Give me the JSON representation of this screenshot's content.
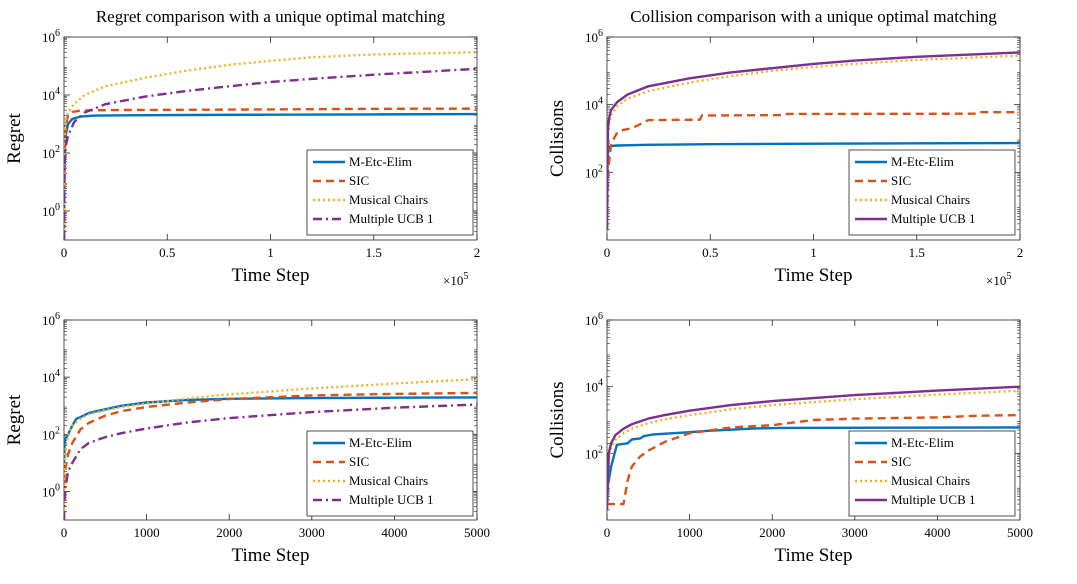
{
  "chart_data": [
    {
      "type": "line",
      "title": "Regret comparison with a unique optimal matching",
      "xlabel": "Time Step",
      "ylabel": "Regret",
      "xlim": [
        0,
        200000
      ],
      "ylim": [
        0.1,
        1000000
      ],
      "yscale": "log",
      "xticks": [
        0,
        50000,
        100000,
        150000,
        200000
      ],
      "xtick_labels": [
        "0",
        "0.5",
        "1",
        "1.5",
        "2"
      ],
      "x_multiplier": "×10",
      "x_multiplier_exp": "5",
      "yticks": [
        1,
        100,
        10000,
        1000000
      ],
      "ytick_base": [
        "10",
        "10",
        "10",
        "10"
      ],
      "ytick_exp": [
        "0",
        "2",
        "4",
        "6"
      ],
      "legend_position": "lower-right",
      "series": [
        {
          "name": "M-Etc-Elim",
          "color": "#0072BD",
          "style": "solid",
          "x": [
            0,
            200,
            500,
            1000,
            2000,
            4000,
            8000,
            15000,
            30000,
            60000,
            100000,
            150000,
            200000
          ],
          "y": [
            0.1,
            20,
            150,
            500,
            1000,
            1500,
            1800,
            1950,
            2000,
            2050,
            2100,
            2150,
            2200
          ]
        },
        {
          "name": "SIC",
          "color": "#D95319",
          "style": "dashed",
          "x": [
            0,
            200,
            500,
            1000,
            2000,
            4000,
            8000,
            15000,
            30000,
            60000,
            100000,
            150000,
            200000
          ],
          "y": [
            0.1,
            30,
            300,
            1000,
            2000,
            2600,
            2900,
            3000,
            3050,
            3100,
            3200,
            3350,
            3400
          ]
        },
        {
          "name": "Musical Chairs",
          "color": "#EDB120",
          "style": "dotted",
          "x": [
            0,
            200,
            500,
            1000,
            2000,
            5000,
            10000,
            20000,
            40000,
            60000,
            80000,
            100000,
            120000,
            150000,
            200000
          ],
          "y": [
            0.1,
            100,
            800,
            1500,
            2500,
            5000,
            10000,
            20000,
            40000,
            70000,
            110000,
            150000,
            200000,
            250000,
            300000
          ]
        },
        {
          "name": "Multiple UCB 1",
          "color": "#7E2F8E",
          "style": "dashdot",
          "x": [
            0,
            200,
            500,
            1000,
            2000,
            5000,
            10000,
            20000,
            40000,
            60000,
            80000,
            100000,
            120000,
            150000,
            200000
          ],
          "y": [
            0.1,
            10,
            80,
            200,
            400,
            1200,
            2500,
            4800,
            9000,
            14000,
            20000,
            28000,
            36000,
            50000,
            80000
          ]
        }
      ]
    },
    {
      "type": "line",
      "title": "Collision comparison with a unique optimal matching",
      "xlabel": "Time Step",
      "ylabel": "Collisions",
      "xlim": [
        0,
        200000
      ],
      "ylim": [
        1,
        1000000
      ],
      "yscale": "log",
      "xticks": [
        0,
        50000,
        100000,
        150000,
        200000
      ],
      "xtick_labels": [
        "0",
        "0.5",
        "1",
        "1.5",
        "2"
      ],
      "x_multiplier": "×10",
      "x_multiplier_exp": "5",
      "yticks": [
        100,
        10000,
        1000000
      ],
      "ytick_base": [
        "10",
        "10",
        "10"
      ],
      "ytick_exp": [
        "2",
        "4",
        "6"
      ],
      "legend_position": "lower-right",
      "series": [
        {
          "name": "M-Etc-Elim",
          "color": "#0072BD",
          "style": "solid",
          "x": [
            0,
            200,
            500,
            1000,
            2000,
            5000,
            20000,
            50000,
            100000,
            150000,
            200000
          ],
          "y": [
            2,
            100,
            450,
            580,
            600,
            620,
            650,
            680,
            700,
            720,
            730
          ]
        },
        {
          "name": "SIC",
          "color": "#D95319",
          "style": "dashed",
          "x": [
            0,
            500,
            2000,
            5000,
            8000,
            12000,
            20000,
            45000,
            46000,
            85000,
            86000,
            178000,
            179000,
            200000
          ],
          "y": [
            2,
            100,
            700,
            1500,
            1800,
            2000,
            3500,
            3600,
            4800,
            4900,
            5300,
            5400,
            6000,
            6000
          ]
        },
        {
          "name": "Musical Chairs",
          "color": "#EDB120",
          "style": "dotted",
          "x": [
            0,
            200,
            500,
            1000,
            2000,
            5000,
            10000,
            20000,
            40000,
            60000,
            80000,
            100000,
            120000,
            150000,
            200000
          ],
          "y": [
            2,
            300,
            1500,
            3000,
            5000,
            9000,
            15000,
            25000,
            45000,
            70000,
            100000,
            130000,
            160000,
            210000,
            280000
          ]
        },
        {
          "name": "Multiple UCB 1",
          "color": "#7E2F8E",
          "style": "solid",
          "x": [
            0,
            200,
            500,
            1000,
            2000,
            5000,
            10000,
            20000,
            40000,
            60000,
            80000,
            100000,
            120000,
            150000,
            200000
          ],
          "y": [
            2,
            400,
            2000,
            4000,
            7000,
            12000,
            20000,
            35000,
            60000,
            90000,
            120000,
            160000,
            200000,
            260000,
            350000
          ]
        }
      ]
    },
    {
      "type": "line",
      "title": "",
      "xlabel": "Time Step",
      "ylabel": "Regret",
      "xlim": [
        0,
        5000
      ],
      "ylim": [
        0.1,
        1000000
      ],
      "yscale": "log",
      "xticks": [
        0,
        1000,
        2000,
        3000,
        4000,
        5000
      ],
      "xtick_labels": [
        "0",
        "1000",
        "2000",
        "3000",
        "4000",
        "5000"
      ],
      "x_multiplier": "",
      "x_multiplier_exp": "",
      "yticks": [
        1,
        100,
        10000,
        1000000
      ],
      "ytick_base": [
        "10",
        "10",
        "10",
        "10"
      ],
      "ytick_exp": [
        "0",
        "2",
        "4",
        "6"
      ],
      "legend_position": "lower-right",
      "series": [
        {
          "name": "M-Etc-Elim",
          "color": "#0072BD",
          "style": "solid",
          "x": [
            0,
            10,
            50,
            100,
            150,
            200,
            300,
            400,
            500,
            700,
            1000,
            1500,
            2000,
            3000,
            4000,
            5000
          ],
          "y": [
            10,
            60,
            100,
            200,
            350,
            400,
            550,
            650,
            750,
            1000,
            1300,
            1600,
            1750,
            1850,
            1900,
            1950
          ]
        },
        {
          "name": "SIC",
          "color": "#D95319",
          "style": "dashed",
          "x": [
            0,
            10,
            50,
            100,
            200,
            300,
            500,
            700,
            1000,
            1500,
            2000,
            3000,
            4000,
            5000
          ],
          "y": [
            2,
            5,
            20,
            50,
            150,
            250,
            450,
            650,
            900,
            1300,
            1700,
            2300,
            2600,
            2800
          ]
        },
        {
          "name": "Musical Chairs",
          "color": "#EDB120",
          "style": "dotted",
          "x": [
            0,
            10,
            50,
            100,
            200,
            300,
            500,
            700,
            1000,
            1500,
            2000,
            3000,
            4000,
            5000
          ],
          "y": [
            0.1,
            20,
            100,
            200,
            350,
            500,
            700,
            900,
            1200,
            1800,
            2500,
            4000,
            6000,
            8500
          ]
        },
        {
          "name": "Multiple UCB 1",
          "color": "#7E2F8E",
          "style": "dashdot",
          "x": [
            0,
            10,
            50,
            100,
            200,
            300,
            500,
            700,
            1000,
            1500,
            2000,
            3000,
            4000,
            5000
          ],
          "y": [
            0.1,
            1,
            5,
            10,
            30,
            50,
            80,
            110,
            160,
            260,
            370,
            600,
            850,
            1100
          ]
        }
      ]
    },
    {
      "type": "line",
      "title": "",
      "xlabel": "Time Step",
      "ylabel": "Collisions",
      "xlim": [
        0,
        5000
      ],
      "ylim": [
        1,
        1000000
      ],
      "yscale": "log",
      "xticks": [
        0,
        1000,
        2000,
        3000,
        4000,
        5000
      ],
      "xtick_labels": [
        "0",
        "1000",
        "2000",
        "3000",
        "4000",
        "5000"
      ],
      "x_multiplier": "",
      "x_multiplier_exp": "",
      "yticks": [
        100,
        10000,
        1000000
      ],
      "ytick_base": [
        "10",
        "10",
        "10"
      ],
      "ytick_exp": [
        "2",
        "4",
        "6"
      ],
      "legend_position": "lower-right",
      "series": [
        {
          "name": "M-Etc-Elim",
          "color": "#0072BD",
          "style": "solid",
          "x": [
            0,
            20,
            50,
            100,
            120,
            250,
            300,
            400,
            450,
            560,
            1000,
            1200,
            1800,
            2100,
            5000
          ],
          "y": [
            8,
            15,
            40,
            120,
            180,
            200,
            260,
            280,
            330,
            370,
            430,
            470,
            560,
            580,
            600
          ]
        },
        {
          "name": "SIC",
          "color": "#D95319",
          "style": "dashed",
          "x": [
            0,
            50,
            200,
            250,
            300,
            400,
            500,
            700,
            1000,
            1500,
            2000,
            2500,
            3000,
            4000,
            4500,
            5000
          ],
          "y": [
            3,
            3,
            3,
            15,
            40,
            80,
            120,
            220,
            400,
            600,
            700,
            1000,
            1100,
            1200,
            1350,
            1400
          ]
        },
        {
          "name": "Musical Chairs",
          "color": "#EDB120",
          "style": "dotted",
          "x": [
            0,
            20,
            50,
            100,
            200,
            300,
            500,
            700,
            1000,
            1500,
            2000,
            3000,
            4000,
            5000
          ],
          "y": [
            1.5,
            60,
            150,
            250,
            400,
            550,
            800,
            1050,
            1400,
            2100,
            2800,
            4200,
            5800,
            7500
          ]
        },
        {
          "name": "Multiple UCB 1",
          "color": "#7E2F8E",
          "style": "solid",
          "x": [
            0,
            20,
            50,
            100,
            200,
            300,
            500,
            700,
            1000,
            1500,
            2000,
            3000,
            4000,
            5000
          ],
          "y": [
            2,
            100,
            200,
            350,
            550,
            750,
            1100,
            1400,
            1900,
            2800,
            3700,
            5600,
            7600,
            10000
          ]
        }
      ]
    }
  ]
}
